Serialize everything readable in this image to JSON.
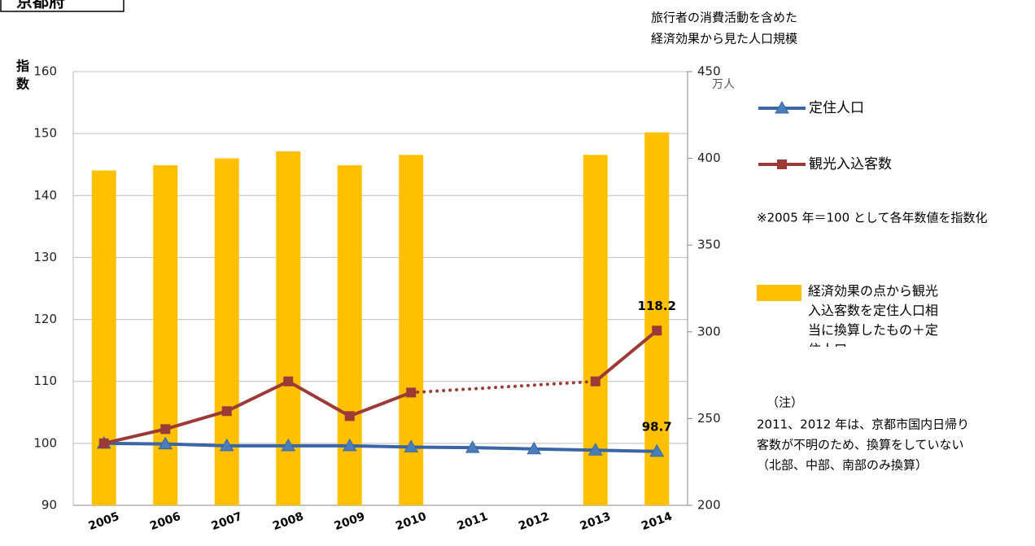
{
  "chart_data": {
    "type": "bar-line",
    "title": "京都府",
    "y_label": [
      "指",
      "数"
    ],
    "y2_title": [
      "旅行者の消費活動を含めた",
      "経済効果から見た人口規模"
    ],
    "y2_unit": "万人",
    "categories": [
      "2005",
      "2006",
      "2007",
      "2008",
      "2009",
      "2010",
      "2011",
      "2012",
      "2013",
      "2014"
    ],
    "ylim": [
      90,
      160
    ],
    "yticks": [
      90,
      100,
      110,
      120,
      130,
      140,
      150,
      160
    ],
    "y2lim": [
      200,
      450
    ],
    "y2ticks": [
      200,
      250,
      300,
      350,
      400,
      450
    ],
    "grid": true,
    "series": [
      {
        "name": "定住人口",
        "type": "line",
        "color": "#3a66a8",
        "marker": "triangle",
        "values": [
          100,
          99.9,
          99.6,
          99.6,
          99.6,
          99.4,
          99.3,
          99.1,
          98.9,
          98.7
        ]
      },
      {
        "name": "観光入込客数",
        "type": "line",
        "color": "#9b3a37",
        "marker": "square",
        "bridge_gaps": "dotted",
        "values": [
          100,
          102.3,
          105.2,
          110,
          104.4,
          108.2,
          null,
          null,
          110,
          118.2
        ]
      },
      {
        "name": "経済効果の点から観光入込客数を定住人口相当に換算したもの＋定住人口",
        "type": "bar",
        "axis": "y2",
        "color": "#ffc000",
        "values": [
          393,
          396,
          400,
          404,
          396,
          402,
          null,
          null,
          402,
          415
        ]
      }
    ],
    "index_note": "※2005 年＝100 として各年数値を指数化",
    "notes": [
      "（注）",
      "2011、2012 年は、京都市国内日帰り",
      "客数が不明のため、換算をしていない",
      "（北部、中部、南部のみ換算）"
    ]
  }
}
